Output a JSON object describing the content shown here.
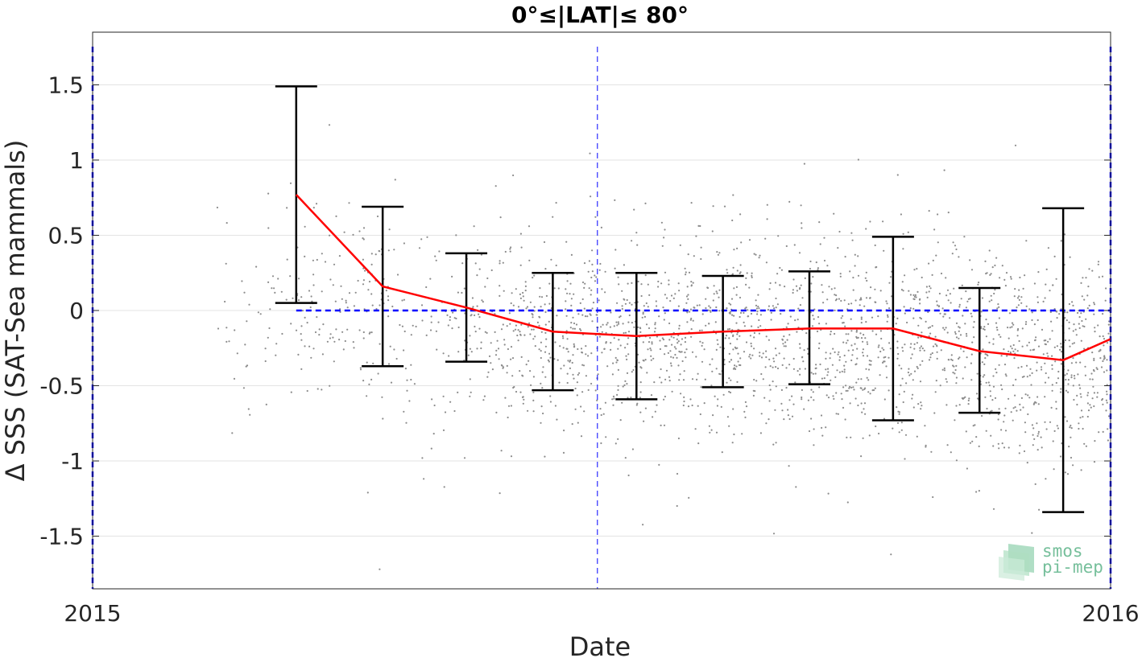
{
  "chart_data": {
    "type": "scatter",
    "title": "0°≤|LAT|≤ 80°",
    "xlabel": "Date",
    "ylabel": "Δ SSS (SAT-Sea mammals)",
    "xlim": [
      "2015-01-01",
      "2016-01-01"
    ],
    "ylim": [
      -1.85,
      1.85
    ],
    "x_ticks": [
      "2015",
      "2016"
    ],
    "y_ticks": [
      1.5,
      1,
      0.5,
      0,
      -0.5,
      -1,
      -1.5
    ],
    "y_tick_labels": [
      "1.5",
      "1",
      "0.5",
      "0",
      "-0.5",
      "-1",
      "-1.5"
    ],
    "grid": true,
    "series": [
      {
        "kind": "scatter",
        "color": "#8c8c8c",
        "description": "individual satellite minus sea-mammal SSS differences, approx. mid-Feb 2015 to end of Dec 2015, concentrated between -0.9 and 0.4"
      },
      {
        "kind": "line_with_errorbars",
        "color": "#ff0000",
        "errorbar_color": "#000000",
        "x": [
          "2015-03-15",
          "2015-04-15",
          "2015-05-15",
          "2015-06-15",
          "2015-07-15",
          "2015-08-15",
          "2015-09-15",
          "2015-10-15",
          "2015-11-15",
          "2015-12-15",
          "2016-01-01"
        ],
        "mean": [
          0.77,
          0.16,
          0.02,
          -0.14,
          -0.17,
          -0.14,
          -0.12,
          -0.12,
          -0.27,
          -0.33,
          -0.19
        ],
        "lower": [
          0.05,
          -0.37,
          -0.34,
          -0.53,
          -0.59,
          -0.51,
          -0.49,
          -0.73,
          -0.68,
          -1.34,
          null
        ],
        "upper": [
          1.49,
          0.69,
          0.38,
          0.25,
          0.25,
          0.23,
          0.26,
          0.49,
          0.15,
          0.68,
          null
        ]
      }
    ],
    "reference_lines": [
      {
        "orientation": "horizontal",
        "y": 0,
        "x_start": "2015-03-15",
        "x_end": "2016-01-01",
        "color": "#0000ff",
        "style": "dashed"
      },
      {
        "orientation": "vertical",
        "x": "2015-07-01",
        "color": "#0000ff",
        "style": "dashed"
      },
      {
        "orientation": "vertical",
        "x": "2015-01-01",
        "color": "#0000ff",
        "style": "dashed"
      },
      {
        "orientation": "vertical",
        "x": "2016-01-01",
        "color": "#0000ff",
        "style": "dashed"
      }
    ]
  },
  "logo": {
    "line1": "smos",
    "line2": "pi-mep",
    "color": "#5fb58a"
  }
}
